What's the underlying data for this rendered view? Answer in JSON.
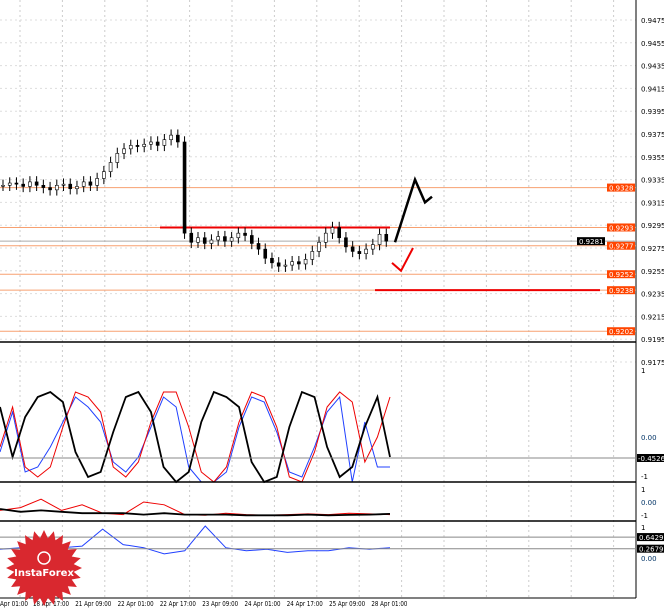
{
  "chart_data": {
    "type": "candlestick",
    "price_ticks": [
      "0.9475",
      "0.9455",
      "0.9435",
      "0.9415",
      "0.9395",
      "0.9375",
      "0.9355",
      "0.9335",
      "0.9315",
      "0.9295",
      "0.9275",
      "0.9255",
      "0.9235",
      "0.9215",
      "0.9195",
      "0.9175"
    ],
    "price_levels": [
      {
        "value": "0.9328",
        "color": "#ff4500"
      },
      {
        "value": "0.9293",
        "color": "#ff4500"
      },
      {
        "value": "0.9277",
        "color": "#ff4500"
      },
      {
        "value": "0.9252",
        "color": "#ff4500"
      },
      {
        "value": "0.9238",
        "color": "#ff4500"
      },
      {
        "value": "0.9202",
        "color": "#ff4500"
      }
    ],
    "current_price": "0.9281",
    "closes": [
      0.933,
      0.9332,
      0.9331,
      0.9329,
      0.9333,
      0.933,
      0.9328,
      0.9326,
      0.933,
      0.9331,
      0.9327,
      0.9329,
      0.9333,
      0.933,
      0.9336,
      0.9342,
      0.935,
      0.9358,
      0.9362,
      0.9365,
      0.9364,
      0.9366,
      0.9368,
      0.9365,
      0.937,
      0.9374,
      0.9368,
      0.9288,
      0.928,
      0.9284,
      0.9279,
      0.9282,
      0.9285,
      0.9281,
      0.9284,
      0.9288,
      0.9286,
      0.9279,
      0.9274,
      0.9266,
      0.9262,
      0.9259,
      0.926,
      0.9263,
      0.9261,
      0.9265,
      0.9272,
      0.928,
      0.9288,
      0.9293,
      0.9284,
      0.9276,
      0.9272,
      0.927,
      0.9274,
      0.9278,
      0.9287,
      0.9281
    ],
    "x_labels": [
      "Apr 01:00",
      "18 Apr 17:00",
      "21 Apr 09:00",
      "22 Apr 01:00",
      "22 Apr 17:00",
      "23 Apr 09:00",
      "24 Apr 01:00",
      "24 Apr 17:00",
      "25 Apr 09:00",
      "28 Apr 01:00"
    ],
    "forecast_black": [
      0.928,
      0.9335,
      0.9315,
      0.932
    ],
    "forecast_red": [
      0.9262,
      0.9255,
      0.9275
    ],
    "indicator1": {
      "ticks": [
        "1",
        "0.00",
        "-1"
      ],
      "value": "-0.4526",
      "black": [
        0.6,
        -0.4,
        0.4,
        0.8,
        0.9,
        0.7,
        -0.3,
        -0.8,
        -0.7,
        0.1,
        0.8,
        0.9,
        0.5,
        -0.6,
        -0.9,
        -0.7,
        0.3,
        0.9,
        0.8,
        0.6,
        -0.5,
        -0.9,
        -0.8,
        0.2,
        0.9,
        0.8,
        -0.2,
        -0.8,
        -0.6,
        0.2,
        0.8,
        -0.4
      ],
      "red": [
        -0.2,
        0.6,
        -0.6,
        -0.8,
        -0.6,
        0.2,
        0.9,
        0.8,
        0.5,
        -0.6,
        -0.8,
        -0.5,
        0.3,
        0.9,
        0.9,
        0.2,
        -0.7,
        -0.9,
        -0.6,
        0.3,
        0.9,
        0.8,
        0.2,
        -0.8,
        -0.9,
        -0.3,
        0.6,
        0.9,
        0.7,
        -0.5,
        0.0,
        0.8
      ],
      "blue": [
        -0.3,
        0.5,
        -0.7,
        -0.6,
        -0.2,
        0.3,
        0.8,
        0.6,
        0.3,
        -0.5,
        -0.7,
        -0.4,
        0.2,
        0.8,
        0.6,
        -0.6,
        -0.9,
        -0.9,
        -0.7,
        0.2,
        0.8,
        0.7,
        0.1,
        -0.7,
        -0.8,
        -0.2,
        0.5,
        0.8,
        -0.9,
        0.3,
        -0.6,
        -0.6
      ]
    },
    "indicator2": {
      "ticks": [
        "1",
        "0.00",
        "-1"
      ],
      "black": [
        -0.5,
        -0.7,
        -0.6,
        -0.7,
        -0.8,
        -0.8,
        -0.8,
        -0.9,
        -0.8,
        -0.9,
        -0.9,
        -0.9,
        -0.95,
        -0.95,
        -0.95,
        -0.9,
        -0.95,
        -0.92,
        -0.9,
        -0.85
      ],
      "red": [
        -0.6,
        -0.4,
        0.2,
        -0.6,
        -0.2,
        -0.8,
        -0.9,
        0.0,
        -0.2,
        -0.9,
        -0.95,
        -0.8,
        -0.9,
        -0.95,
        -0.9,
        -0.85,
        -0.9,
        -0.8,
        -0.85,
        -0.9
      ]
    },
    "indicator3": {
      "ticks": [
        "1",
        "0.00"
      ],
      "levels": [
        "0.6429",
        "0.2679"
      ],
      "blue": [
        0.25,
        0.3,
        0.4,
        0.3,
        0.35,
        0.9,
        0.4,
        0.3,
        0.1,
        0.2,
        1.0,
        0.3,
        0.2,
        0.25,
        0.15,
        0.2,
        0.2,
        0.3,
        0.25,
        0.3
      ]
    }
  },
  "logo": {
    "text": "InstaForex",
    "color": "#d9282f"
  }
}
